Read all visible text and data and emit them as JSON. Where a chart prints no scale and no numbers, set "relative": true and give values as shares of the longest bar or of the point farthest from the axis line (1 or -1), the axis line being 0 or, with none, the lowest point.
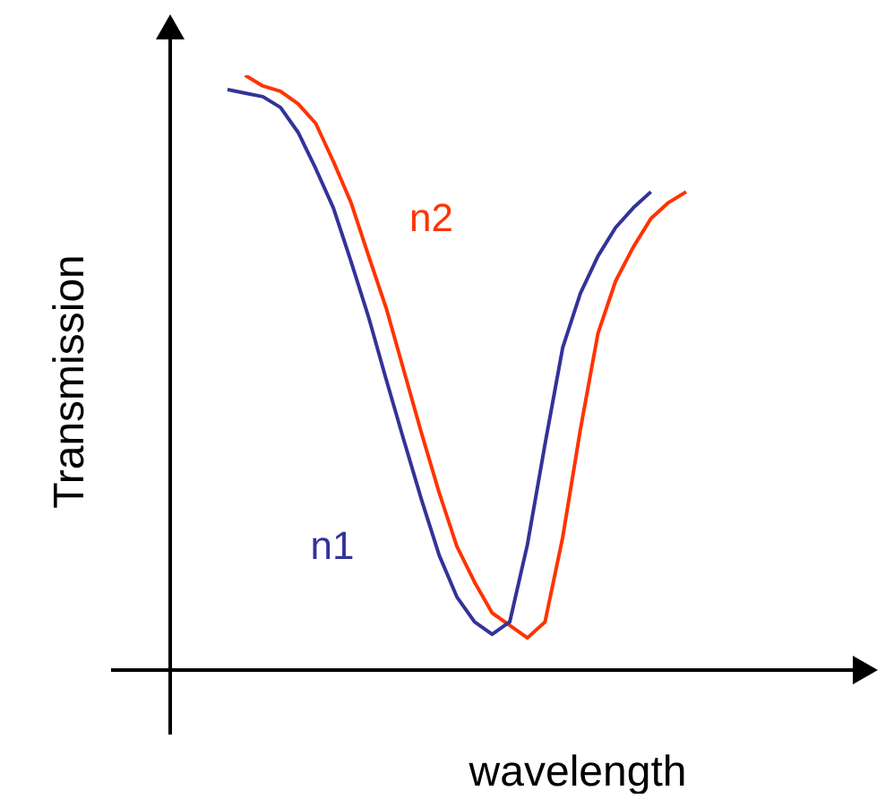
{
  "chart_data": {
    "type": "line",
    "relative": true,
    "xlabel": "wavelength",
    "ylabel": "Transmission",
    "tick_labels": false,
    "legend": false,
    "marker": "none",
    "line_style": "solid",
    "categories": [
      null,
      null,
      null,
      null,
      null,
      null,
      null,
      null,
      null,
      null,
      null,
      null,
      null,
      null,
      null,
      null,
      null,
      null,
      null,
      null,
      null,
      null,
      null,
      null,
      null,
      null,
      null
    ],
    "series": [
      {
        "name": "n1",
        "color": "#333399",
        "values": [
          0.976,
          0.97,
          0.964,
          0.946,
          0.904,
          0.843,
          0.777,
          0.687,
          0.593,
          0.488,
          0.386,
          0.286,
          0.193,
          0.123,
          0.081,
          0.06,
          0.081,
          0.211,
          0.38,
          0.542,
          0.633,
          0.696,
          0.744,
          0.777,
          0.804,
          null,
          null
        ]
      },
      {
        "name": "n2",
        "color": "#ff3300",
        "values": [
          null,
          1.0,
          0.982,
          0.973,
          0.952,
          0.919,
          0.855,
          0.786,
          0.696,
          0.608,
          0.503,
          0.398,
          0.298,
          0.208,
          0.148,
          0.096,
          0.075,
          0.054,
          0.081,
          0.223,
          0.404,
          0.566,
          0.654,
          0.711,
          0.759,
          0.786,
          0.804
        ]
      }
    ]
  }
}
